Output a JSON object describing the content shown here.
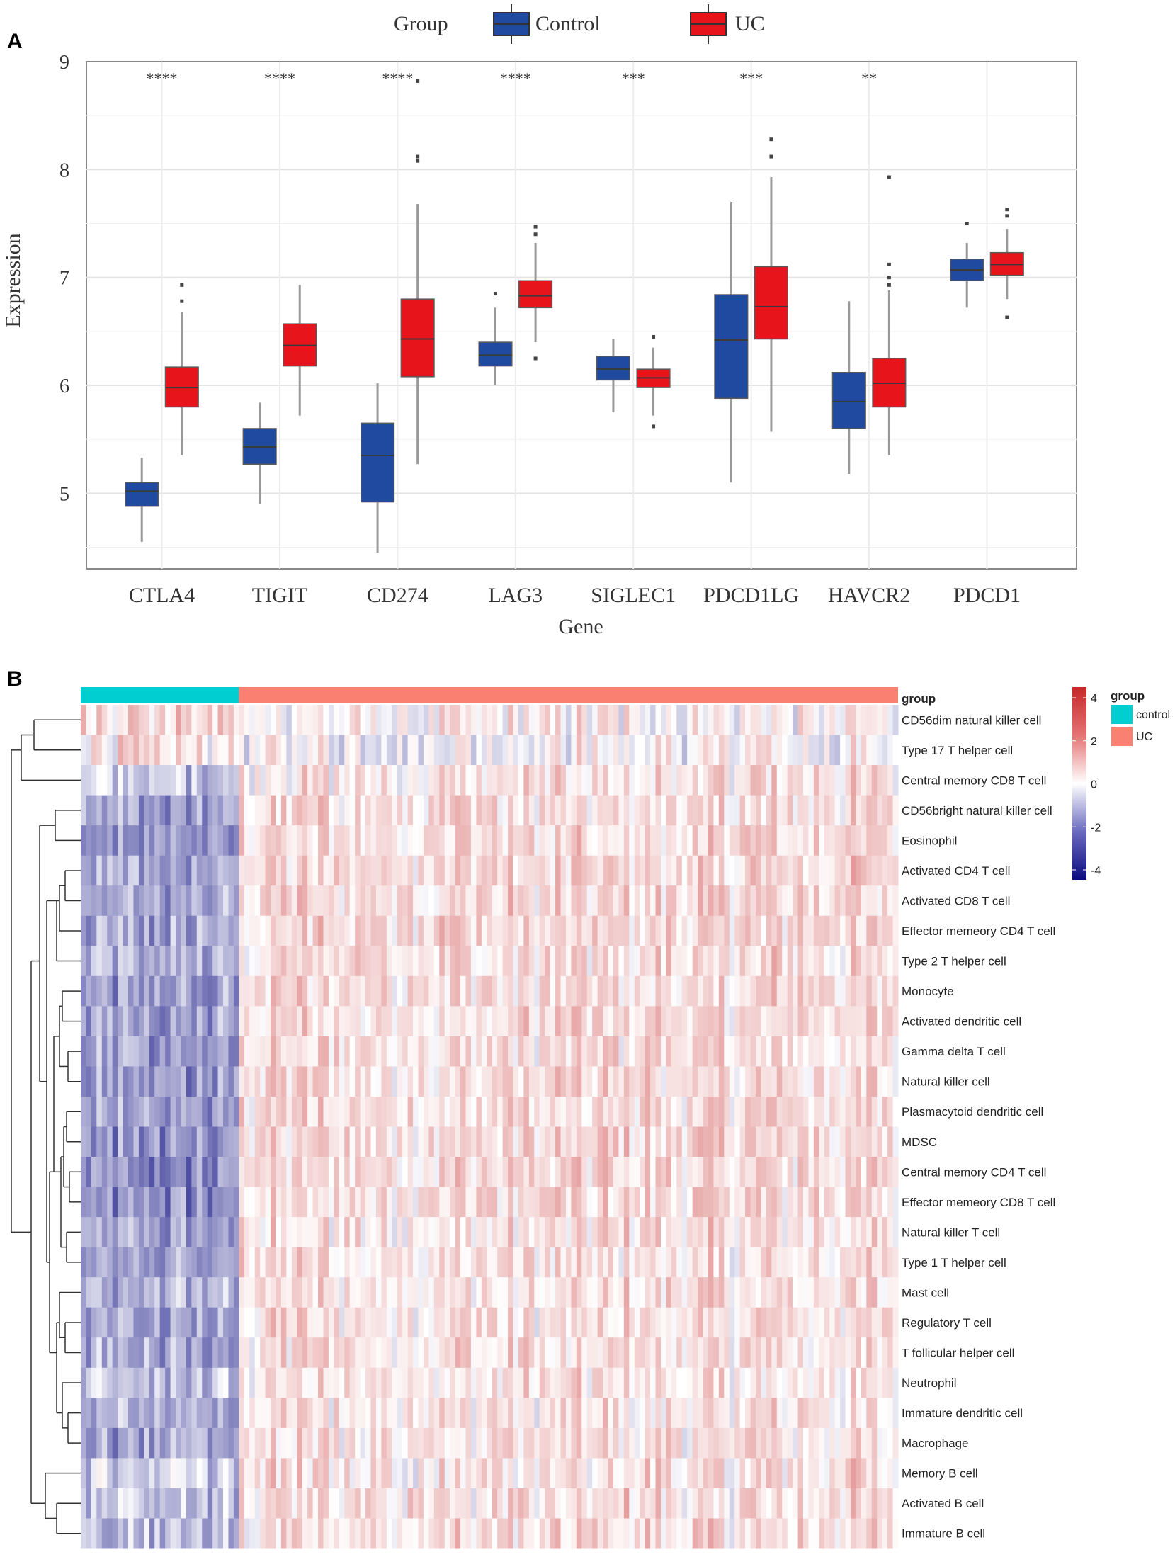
{
  "panel_a": {
    "label": "A",
    "legend": {
      "title": "Group",
      "items": [
        {
          "name": "Control",
          "color": "#1f4aa0"
        },
        {
          "name": "UC",
          "color": "#e8141b"
        }
      ]
    },
    "chart_data": {
      "type": "boxplot",
      "xlabel": "Gene",
      "ylabel": "Expression",
      "ylim": [
        4.3,
        9
      ],
      "yticks": [
        5,
        6,
        7,
        8,
        9
      ],
      "categories": [
        "CTLA4",
        "TIGIT",
        "CD274",
        "LAG3",
        "SIGLEC1",
        "PDCD1LG",
        "HAVCR2",
        "PDCD1"
      ],
      "significance": [
        "****",
        "****",
        "****",
        "****",
        "***",
        "***",
        "**",
        ""
      ],
      "series": [
        {
          "name": "Control",
          "color": "#1f4aa0",
          "boxes": [
            {
              "min": 4.55,
              "q1": 4.88,
              "median": 5.02,
              "q3": 5.1,
              "max": 5.33,
              "outliers": []
            },
            {
              "min": 4.9,
              "q1": 5.27,
              "median": 5.43,
              "q3": 5.6,
              "max": 5.84,
              "outliers": []
            },
            {
              "min": 4.45,
              "q1": 4.92,
              "median": 5.35,
              "q3": 5.65,
              "max": 6.02,
              "outliers": []
            },
            {
              "min": 6.0,
              "q1": 6.18,
              "median": 6.28,
              "q3": 6.4,
              "max": 6.72,
              "outliers": [
                6.85
              ]
            },
            {
              "min": 5.75,
              "q1": 6.05,
              "median": 6.15,
              "q3": 6.27,
              "max": 6.43,
              "outliers": []
            },
            {
              "min": 5.1,
              "q1": 5.88,
              "median": 6.42,
              "q3": 6.84,
              "max": 7.7,
              "outliers": []
            },
            {
              "min": 5.18,
              "q1": 5.6,
              "median": 5.85,
              "q3": 6.12,
              "max": 6.78,
              "outliers": []
            },
            {
              "min": 6.72,
              "q1": 6.97,
              "median": 7.07,
              "q3": 7.17,
              "max": 7.32,
              "outliers": [
                7.5
              ]
            }
          ]
        },
        {
          "name": "UC",
          "color": "#e8141b",
          "boxes": [
            {
              "min": 5.35,
              "q1": 5.8,
              "median": 5.98,
              "q3": 6.17,
              "max": 6.68,
              "outliers": [
                6.78,
                6.93
              ]
            },
            {
              "min": 5.72,
              "q1": 6.18,
              "median": 6.37,
              "q3": 6.57,
              "max": 6.93,
              "outliers": []
            },
            {
              "min": 5.27,
              "q1": 6.08,
              "median": 6.43,
              "q3": 6.8,
              "max": 7.68,
              "outliers": [
                8.08,
                8.12,
                8.82
              ]
            },
            {
              "min": 6.4,
              "q1": 6.72,
              "median": 6.83,
              "q3": 6.97,
              "max": 7.32,
              "outliers": [
                6.25,
                7.4,
                7.47
              ]
            },
            {
              "min": 5.72,
              "q1": 5.98,
              "median": 6.07,
              "q3": 6.15,
              "max": 6.35,
              "outliers": [
                5.62,
                6.45
              ]
            },
            {
              "min": 5.57,
              "q1": 6.43,
              "median": 6.73,
              "q3": 7.1,
              "max": 7.93,
              "outliers": [
                8.12,
                8.28
              ]
            },
            {
              "min": 5.35,
              "q1": 5.8,
              "median": 6.02,
              "q3": 6.25,
              "max": 6.88,
              "outliers": [
                6.93,
                7.0,
                7.12,
                7.93
              ]
            },
            {
              "min": 6.8,
              "q1": 7.02,
              "median": 7.12,
              "q3": 7.23,
              "max": 7.45,
              "outliers": [
                6.63,
                7.57,
                7.63
              ]
            }
          ]
        }
      ]
    }
  },
  "panel_b": {
    "label": "B",
    "chart_data": {
      "type": "heatmap",
      "annotation_title": "group",
      "groups": [
        {
          "name": "control",
          "color": "#00CED1",
          "n_samples": 30
        },
        {
          "name": "UC",
          "color": "#FA8072",
          "n_samples": 125
        }
      ],
      "scale": {
        "min": -4,
        "max": 4,
        "ticks": [
          4,
          2,
          0,
          -2,
          -4
        ],
        "colors": [
          "#0b0b80",
          "#ffffff",
          "#c62828"
        ]
      },
      "rows": [
        {
          "name": "CD56dim natural killer cell",
          "control_mean": 0.7,
          "uc_mean": 0.1,
          "noise": 0.9
        },
        {
          "name": "Type 17 T helper cell",
          "control_mean": 0.3,
          "uc_mean": 0.0,
          "noise": 0.9
        },
        {
          "name": "Central memory CD8 T cell",
          "control_mean": -0.9,
          "uc_mean": 0.4,
          "noise": 0.8
        },
        {
          "name": "CD56bright natural killer cell",
          "control_mean": -1.6,
          "uc_mean": 0.6,
          "noise": 0.7
        },
        {
          "name": "Eosinophil",
          "control_mean": -1.6,
          "uc_mean": 0.6,
          "noise": 0.7
        },
        {
          "name": "Activated CD4 T cell",
          "control_mean": -1.5,
          "uc_mean": 0.7,
          "noise": 0.7
        },
        {
          "name": "Activated CD8 T cell",
          "control_mean": -1.5,
          "uc_mean": 0.7,
          "noise": 0.7
        },
        {
          "name": "Effector memeory CD4 T cell",
          "control_mean": -1.4,
          "uc_mean": 0.7,
          "noise": 0.7
        },
        {
          "name": "Type 2 T helper cell",
          "control_mean": -1.4,
          "uc_mean": 0.6,
          "noise": 0.7
        },
        {
          "name": "Monocyte",
          "control_mean": -1.6,
          "uc_mean": 0.6,
          "noise": 0.7
        },
        {
          "name": "Activated dendritic cell",
          "control_mean": -1.6,
          "uc_mean": 0.6,
          "noise": 0.7
        },
        {
          "name": "Gamma delta T cell",
          "control_mean": -1.6,
          "uc_mean": 0.6,
          "noise": 0.7
        },
        {
          "name": "Natural killer cell",
          "control_mean": -1.7,
          "uc_mean": 0.6,
          "noise": 0.7
        },
        {
          "name": "Plasmacytoid dendritic cell",
          "control_mean": -1.7,
          "uc_mean": 0.6,
          "noise": 0.7
        },
        {
          "name": "MDSC",
          "control_mean": -1.8,
          "uc_mean": 0.6,
          "noise": 0.7
        },
        {
          "name": "Central memory CD4 T cell",
          "control_mean": -1.9,
          "uc_mean": 0.6,
          "noise": 0.7
        },
        {
          "name": "Effector memeory CD8 T cell",
          "control_mean": -1.9,
          "uc_mean": 0.6,
          "noise": 0.7
        },
        {
          "name": "Natural killer T cell",
          "control_mean": -1.6,
          "uc_mean": 0.5,
          "noise": 0.7
        },
        {
          "name": "Type 1 T helper cell",
          "control_mean": -1.6,
          "uc_mean": 0.5,
          "noise": 0.7
        },
        {
          "name": "Mast cell",
          "control_mean": -1.3,
          "uc_mean": 0.5,
          "noise": 0.7
        },
        {
          "name": "Regulatory T cell",
          "control_mean": -1.6,
          "uc_mean": 0.5,
          "noise": 0.7
        },
        {
          "name": "T follicular helper cell",
          "control_mean": -1.5,
          "uc_mean": 0.5,
          "noise": 0.7
        },
        {
          "name": "Neutrophil",
          "control_mean": -1.1,
          "uc_mean": 0.4,
          "noise": 0.7
        },
        {
          "name": "Immature dendritic cell",
          "control_mean": -1.4,
          "uc_mean": 0.5,
          "noise": 0.7
        },
        {
          "name": "Macrophage",
          "control_mean": -1.5,
          "uc_mean": 0.5,
          "noise": 0.7
        },
        {
          "name": "Memory B cell",
          "control_mean": -0.8,
          "uc_mean": 0.5,
          "noise": 0.8
        },
        {
          "name": "Activated B cell",
          "control_mean": -1.1,
          "uc_mean": 0.6,
          "noise": 0.8
        },
        {
          "name": "Immature  B cell",
          "control_mean": -1.2,
          "uc_mean": 0.6,
          "noise": 0.8
        }
      ]
    }
  }
}
